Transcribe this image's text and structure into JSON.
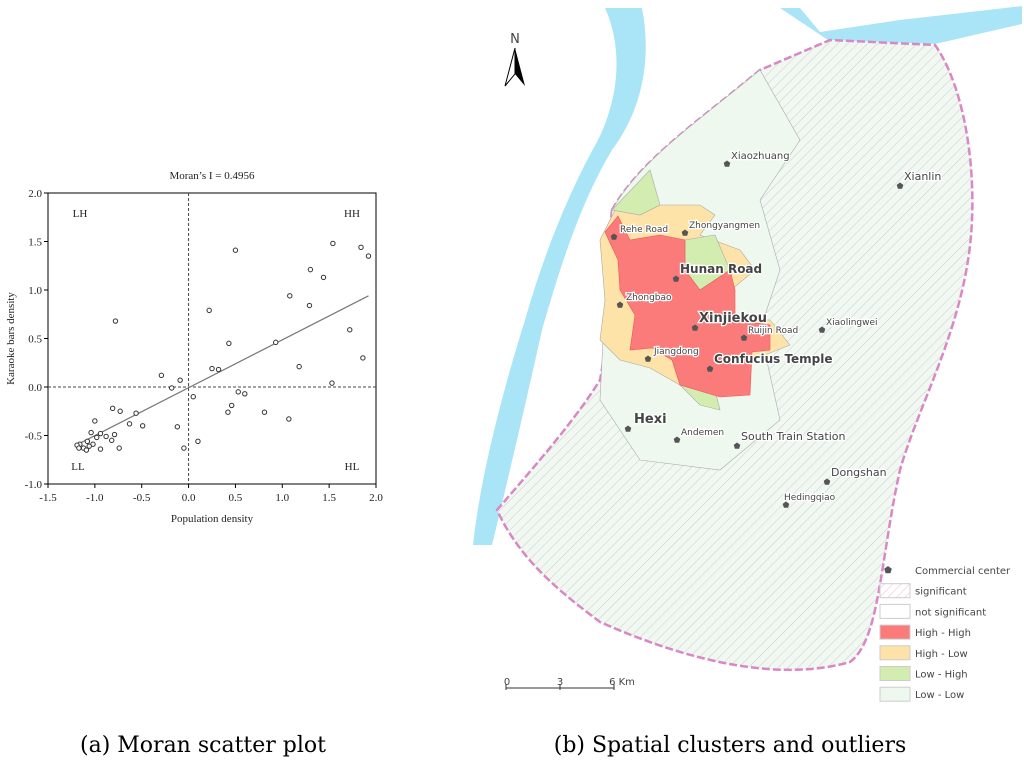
{
  "chart_data": {
    "type": "scatter",
    "title": "Moran’s I = 0.4956",
    "x_label": "Population density",
    "y_label": "Karaoke bars density",
    "xlim": [
      -1.5,
      2.0
    ],
    "xticks": [
      -1.5,
      {
        "value": -1.0,
        "label": "-1.0"
      },
      -0.5,
      {
        "value": 0.0,
        "label": "0.0"
      },
      0.5,
      {
        "value": 1.0,
        "label": "1.0"
      },
      1.5,
      {
        "value": 2.0,
        "label": "2.0"
      }
    ],
    "ylim": [
      -1.0,
      2.0
    ],
    "yticks": [
      {
        "value": -1.0,
        "label": "-1.0"
      },
      -0.5,
      {
        "value": 0.0,
        "label": "0.0"
      },
      0.5,
      {
        "value": 1.0,
        "label": "1.0"
      },
      1.5,
      {
        "value": 2.0,
        "label": "2.0"
      }
    ],
    "quadrant_labels": [
      "LH",
      "HH",
      "LL",
      "HL"
    ],
    "color": "#333333",
    "x": [
      -0.78,
      0.5,
      1.54,
      1.84,
      1.92,
      1.3,
      1.44,
      1.08,
      1.29,
      0.22,
      0.43,
      1.72,
      0.93,
      1.86,
      1.18,
      0.25,
      0.32,
      -0.29,
      -0.09,
      -0.18,
      1.53,
      0.05,
      0.53,
      0.6,
      0.46,
      0.42,
      0.81,
      1.07,
      -0.81,
      -0.73,
      -0.56,
      -1.0,
      -0.63,
      -0.49,
      -0.12,
      0.1,
      -0.05,
      -1.04,
      -0.94,
      -0.79,
      -0.98,
      -0.88,
      -0.82,
      -1.08,
      -1.16,
      -1.02,
      -0.74,
      -1.19,
      -1.12,
      -1.06,
      -0.94,
      -1.09,
      -1.17
    ],
    "values": [
      0.68,
      1.41,
      1.48,
      1.44,
      1.35,
      1.21,
      1.13,
      0.94,
      0.84,
      0.79,
      0.45,
      0.59,
      0.46,
      0.3,
      0.21,
      0.19,
      0.18,
      0.12,
      0.07,
      -0.01,
      0.04,
      -0.1,
      -0.05,
      -0.07,
      -0.19,
      -0.26,
      -0.26,
      -0.33,
      -0.22,
      -0.25,
      -0.27,
      -0.35,
      -0.38,
      -0.4,
      -0.41,
      -0.56,
      -0.63,
      -0.47,
      -0.48,
      -0.49,
      -0.52,
      -0.51,
      -0.55,
      -0.56,
      -0.59,
      -0.59,
      -0.63,
      -0.6,
      -0.63,
      -0.61,
      -0.64,
      -0.65,
      -0.63
    ],
    "trendline": {
      "x": [
        -1.2,
        1.92
      ],
      "y": [
        -0.6,
        0.94
      ]
    },
    "caption": "(a) Moran scatter plot"
  },
  "map": {
    "north": "N",
    "labels": [
      "Xiaozhuang",
      "Xianlin",
      "Rehe Road",
      "Zhongyangmen",
      "Hunan Road",
      "Zhongbao",
      "Xinjiekou",
      "Ruijin Road",
      "Xiaolingwei",
      "Jiangdong",
      "Confucius Temple",
      "Hexi",
      "Andemen",
      "South Train Station",
      "Dongshan",
      "Hedingqiao"
    ],
    "legend": [
      "Commercial center",
      "significant",
      "not significant",
      "High - High",
      "High - Low",
      "Low - High",
      "Low - Low"
    ],
    "legend_colors": [
      "#555555",
      "#f3d9ec",
      "#ffffff",
      "#fb7b7b",
      "#fde3a7",
      "#d3edb1",
      "#eff8ef"
    ],
    "scale": [
      "0",
      "3",
      "6 Km"
    ],
    "caption": "(b) Spatial clusters and outliers"
  }
}
